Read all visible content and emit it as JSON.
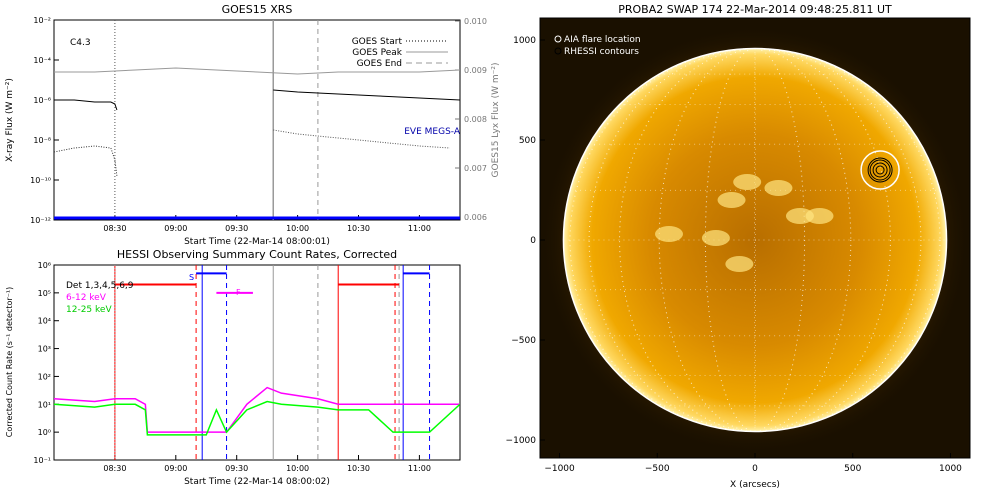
{
  "chart_data": [
    {
      "type": "line",
      "title": "GOES15 XRS",
      "xlabel": "Start Time (22-Mar-14 08:00:01)",
      "ylabel": "X-ray Flux (W m⁻²)",
      "ylabel_right": "GOES15 Lyx Flux (W m⁻²)",
      "annotation": "C4.3",
      "xticks": [
        "08:30",
        "09:00",
        "09:30",
        "10:00",
        "10:30",
        "11:00"
      ],
      "yticks_left": [
        "10⁻¹²",
        "10⁻¹⁰",
        "10⁻⁸",
        "10⁻⁶",
        "10⁻⁴",
        "10⁻²"
      ],
      "yticks_right": [
        "0.006",
        "0.007",
        "0.008",
        "0.009",
        "0.010"
      ],
      "legend": [
        {
          "label": "GOES Start",
          "style": "dotted"
        },
        {
          "label": "GOES Peak",
          "style": "solid"
        },
        {
          "label": "GOES End",
          "style": "dashed"
        }
      ],
      "eve_label": "EVE MEGS-A",
      "xlim_minutes": [
        0,
        200
      ],
      "vlines": [
        {
          "name": "goes-start",
          "x": 30,
          "style": "dotted"
        },
        {
          "name": "goes-peak",
          "x": 108,
          "style": "solid"
        },
        {
          "name": "goes-end",
          "x": 130,
          "style": "dashed"
        }
      ],
      "series": [
        {
          "name": "",
          "color": "#000000",
          "x": [
            0,
            10,
            20,
            28,
            30,
            31
          ],
          "y": [
            -6.0,
            -6.0,
            -6.1,
            -6.1,
            -6.2,
            -6.5
          ]
        },
        {
          "name": "",
          "color": "#000000",
          "x": [
            108,
            120,
            140,
            160,
            180,
            200
          ],
          "y": [
            -5.5,
            -5.6,
            -5.7,
            -5.8,
            -5.9,
            -6.0
          ]
        },
        {
          "name": "",
          "color": "#333333",
          "x": [
            0,
            10,
            20,
            28,
            30,
            31
          ],
          "y": [
            -8.6,
            -8.4,
            -8.3,
            -8.4,
            -9.0,
            -9.8
          ]
        },
        {
          "name": "",
          "color": "#555555",
          "x": [
            108,
            120,
            140,
            160,
            180,
            195
          ],
          "y": [
            -7.5,
            -7.7,
            -7.9,
            -8.1,
            -8.3,
            -8.4
          ]
        },
        {
          "name": "",
          "color": "#999999",
          "x": [
            0,
            20,
            40,
            60,
            80,
            100,
            120,
            140,
            160,
            180,
            200
          ],
          "y": [
            -4.6,
            -4.6,
            -4.5,
            -4.4,
            -4.5,
            -4.6,
            -4.7,
            -4.6,
            -4.6,
            -4.6,
            -4.5
          ]
        },
        {
          "name": "",
          "color": "#0000ff",
          "x": [
            0,
            200
          ],
          "y": [
            -11.9,
            -11.9
          ]
        }
      ]
    },
    {
      "type": "line",
      "title": "HESSI Observing Summary Count Rates, Corrected",
      "xlabel": "Start Time (22-Mar-14 08:00:02)",
      "ylabel": "Corrected Count Rate (s⁻¹ detector⁻¹)",
      "xticks": [
        "08:30",
        "09:00",
        "09:30",
        "10:00",
        "10:30",
        "11:00"
      ],
      "yticks": [
        "10⁻¹",
        "10⁰",
        "10¹",
        "10²",
        "10³",
        "10⁴",
        "10⁵",
        "10⁶"
      ],
      "legend": [
        {
          "label": "Det 1,3,4,5,6,9",
          "color": "#000000"
        },
        {
          "label": "6-12 keV",
          "color": "#ff00ff"
        },
        {
          "label": "12-25 keV",
          "color": "#00ff00"
        }
      ],
      "markers": [
        "S",
        "F"
      ],
      "series": [
        {
          "name": "",
          "color": "#ff00ff",
          "x": [
            0,
            20,
            30,
            40,
            45,
            46,
            80,
            85,
            95,
            105,
            112,
            130,
            140,
            155,
            167,
            185,
            200
          ],
          "y": [
            1.2,
            1.1,
            1.2,
            1.2,
            1.0,
            0.0,
            0.0,
            0.0,
            1.0,
            1.6,
            1.4,
            1.2,
            1.0,
            1.0,
            1.0,
            1.0,
            1.0
          ]
        },
        {
          "name": "",
          "color": "#00ff00",
          "x": [
            0,
            20,
            30,
            40,
            45,
            46,
            75,
            80,
            85,
            95,
            105,
            112,
            130,
            140,
            155,
            167,
            185,
            200
          ],
          "y": [
            1.0,
            0.9,
            1.0,
            1.0,
            0.8,
            -0.1,
            -0.1,
            0.8,
            0.0,
            0.8,
            1.1,
            1.0,
            0.9,
            0.8,
            0.8,
            0.0,
            0.0,
            1.0
          ]
        },
        {
          "name": "",
          "color": "#ff0000",
          "x": [
            30,
            70
          ],
          "y": [
            5.3,
            5.3
          ]
        },
        {
          "name": "",
          "color": "#ff0000",
          "x": [
            140,
            170
          ],
          "y": [
            5.3,
            5.3
          ]
        },
        {
          "name": "",
          "color": "#ff00ff",
          "x": [
            80,
            98
          ],
          "y": [
            5.0,
            5.0
          ]
        },
        {
          "name": "",
          "color": "#0000ff",
          "x": [
            70,
            85
          ],
          "y": [
            5.7,
            5.7
          ]
        },
        {
          "name": "",
          "color": "#0000ff",
          "x": [
            172,
            185
          ],
          "y": [
            5.7,
            5.7
          ]
        }
      ],
      "vlines": [
        {
          "x": 30,
          "color": "#ff0000",
          "style": "solid"
        },
        {
          "x": 70,
          "color": "#ff0000",
          "style": "dashed"
        },
        {
          "x": 73,
          "color": "#0000ff",
          "style": "solid"
        },
        {
          "x": 85,
          "color": "#0000ff",
          "style": "dashed"
        },
        {
          "x": 108,
          "color": "#999999",
          "style": "solid"
        },
        {
          "x": 140,
          "color": "#ff0000",
          "style": "solid"
        },
        {
          "x": 168,
          "color": "#ff0000",
          "style": "dashed"
        },
        {
          "x": 172,
          "color": "#0000ff",
          "style": "solid"
        },
        {
          "x": 185,
          "color": "#0000ff",
          "style": "dashed"
        },
        {
          "x": 130,
          "color": "#999999",
          "style": "dashed"
        },
        {
          "x": 170,
          "color": "#999999",
          "style": "dashed"
        },
        {
          "x": 30,
          "color": "#999999",
          "style": "dotted"
        }
      ]
    },
    {
      "type": "image",
      "title": "PROBA2 SWAP 174 22-Mar-2014 09:48:25.811 UT",
      "xlabel": "X (arcsecs)",
      "xticks": [
        "−1000",
        "−500",
        "0",
        "500",
        "1000"
      ],
      "yticks": [
        "1000",
        "500",
        "0",
        "−500",
        "−1000"
      ],
      "xlim": [
        -1100,
        1100
      ],
      "ylim": [
        -1100,
        1100
      ],
      "disk_radius_arcsec": 980,
      "flare": {
        "x": 640,
        "y": 350
      },
      "legend": [
        {
          "label": "AIA flare location"
        },
        {
          "label": "RHESSI contours"
        }
      ],
      "colors": {
        "disk": "#f0a000",
        "bright": "#ffe680",
        "background": "#1a1000"
      }
    }
  ]
}
